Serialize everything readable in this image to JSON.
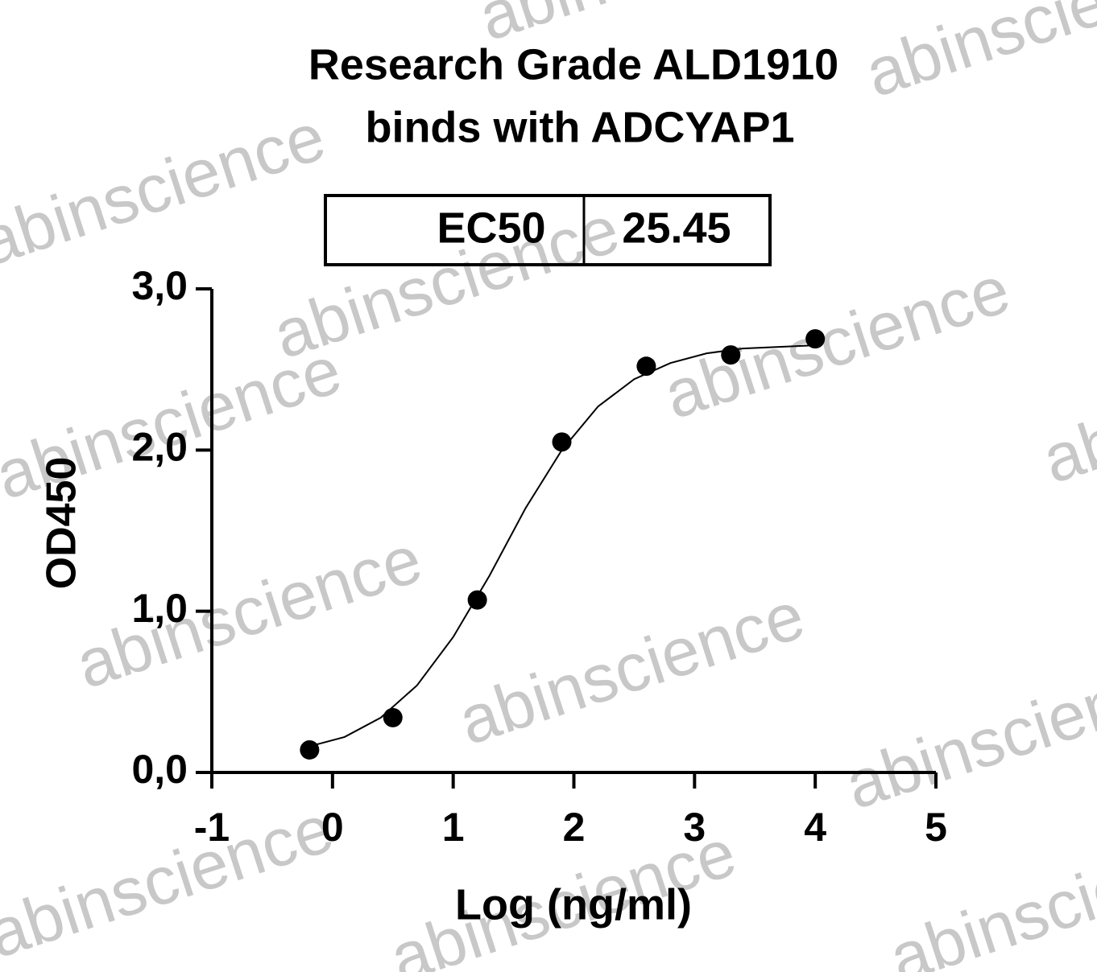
{
  "chart_data": {
    "type": "scatter",
    "title": [
      "Research Grade ALD1910",
      "binds with ADCYAP1"
    ],
    "ec50": {
      "label": "EC50",
      "value": 25.45
    },
    "x_label": "Log (ng/ml)",
    "y_label": "OD450",
    "x": [
      -0.19,
      0.5,
      1.2,
      1.9,
      2.6,
      3.3,
      4.0
    ],
    "values": [
      0.14,
      0.34,
      1.07,
      2.05,
      2.52,
      2.59,
      2.69
    ],
    "color": "#000000",
    "fit": {
      "x": [
        -0.2,
        0.1,
        0.4,
        0.7,
        1.0,
        1.3,
        1.6,
        1.9,
        2.2,
        2.5,
        2.8,
        3.1,
        3.4,
        3.7,
        4.0
      ],
      "values": [
        0.16,
        0.22,
        0.34,
        0.54,
        0.84,
        1.22,
        1.64,
        2.0,
        2.27,
        2.44,
        2.54,
        2.6,
        2.63,
        2.64,
        2.65
      ]
    },
    "xlim": [
      -1,
      5
    ],
    "xticks": [
      -1,
      0,
      1,
      2,
      3,
      4,
      5
    ],
    "ylim": [
      0,
      3
    ],
    "yticks": [
      {
        "value": 0,
        "label": "0,0"
      },
      {
        "value": 1,
        "label": "1,0"
      },
      {
        "value": 2,
        "label": "2,0"
      },
      {
        "value": 3,
        "label": "3,0"
      }
    ],
    "watermark": "abinscience"
  }
}
